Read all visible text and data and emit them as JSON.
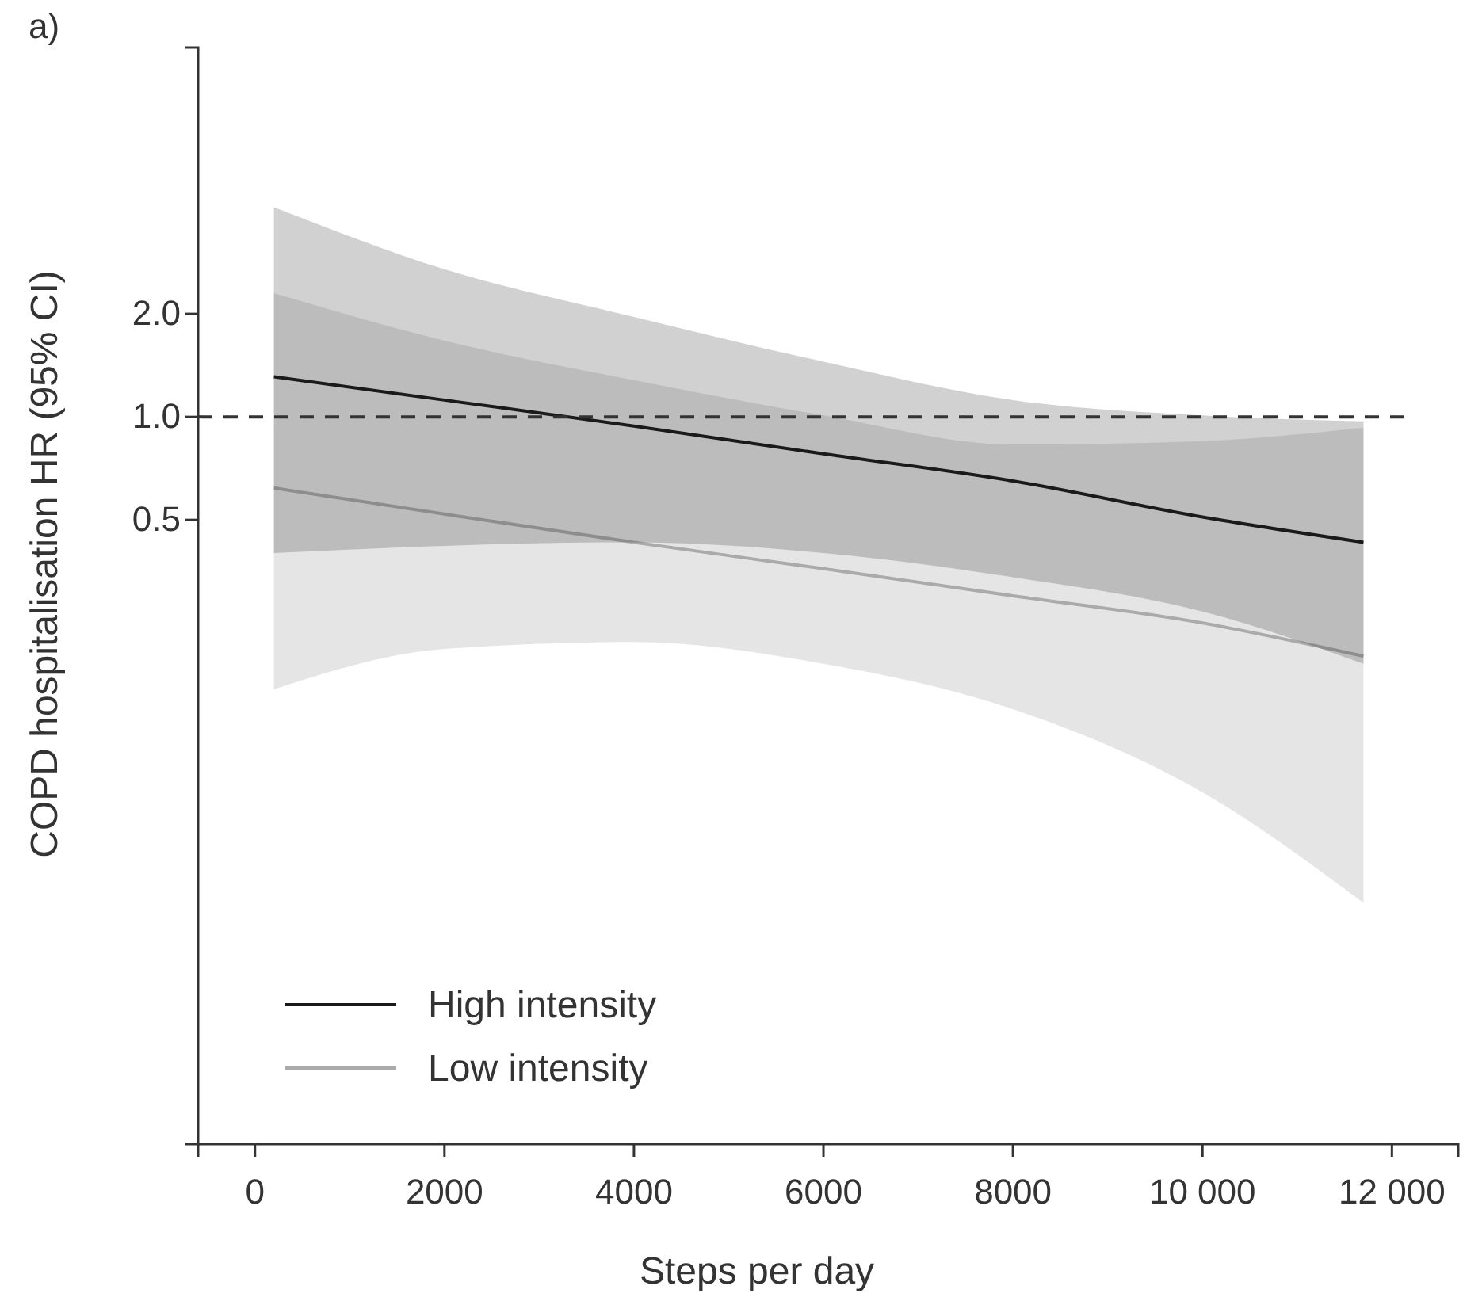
{
  "chart_data": {
    "type": "line",
    "xlabel": "Steps per day",
    "ylabel": "COPD hospitalisation HR (95% CI)",
    "annotations": [
      "a)"
    ],
    "log": "y",
    "xlim": [
      -600,
      12700
    ],
    "xticks": [
      0,
      2000,
      4000,
      6000,
      8000,
      {
        "value": 10000,
        "label": "10 000"
      },
      {
        "value": 12000,
        "label": "12 000"
      }
    ],
    "ylim": [
      0.0075,
      12
    ],
    "yticks": [
      {
        "value": 0.5,
        "label": "0.5"
      },
      {
        "value": 1,
        "label": "1.0"
      },
      {
        "value": 2,
        "label": "2.0"
      }
    ],
    "grid": false,
    "legend": "bottom left",
    "marker": "none",
    "line_style": "solid",
    "ref_lines": [
      {
        "axis": "y",
        "value": 1,
        "color": "#333333",
        "line_style": "dashed"
      }
    ],
    "series": [
      {
        "name": "Low intensity",
        "color": "#aaaaaa",
        "x": [
          200,
          2000,
          4000,
          6000,
          8000,
          10000,
          11700
        ],
        "values": [
          0.62,
          0.52,
          0.43,
          0.36,
          0.3,
          0.25,
          0.2
        ],
        "lower": [
          0.16,
          0.21,
          0.22,
          0.19,
          0.14,
          0.08,
          0.038
        ],
        "upper": [
          2.3,
          1.67,
          1.28,
          1.01,
          0.83,
          0.85,
          0.93
        ]
      },
      {
        "name": "High intensity",
        "color": "#1a1a1a",
        "x": [
          200,
          2000,
          4000,
          6000,
          8000,
          10000,
          11700
        ],
        "values": [
          1.31,
          1.12,
          0.94,
          0.78,
          0.65,
          0.51,
          0.43
        ],
        "lower": [
          0.4,
          0.42,
          0.43,
          0.4,
          0.34,
          0.27,
          0.19
        ],
        "upper": [
          4.1,
          2.7,
          1.96,
          1.45,
          1.12,
          1.01,
          0.97
        ]
      }
    ]
  }
}
